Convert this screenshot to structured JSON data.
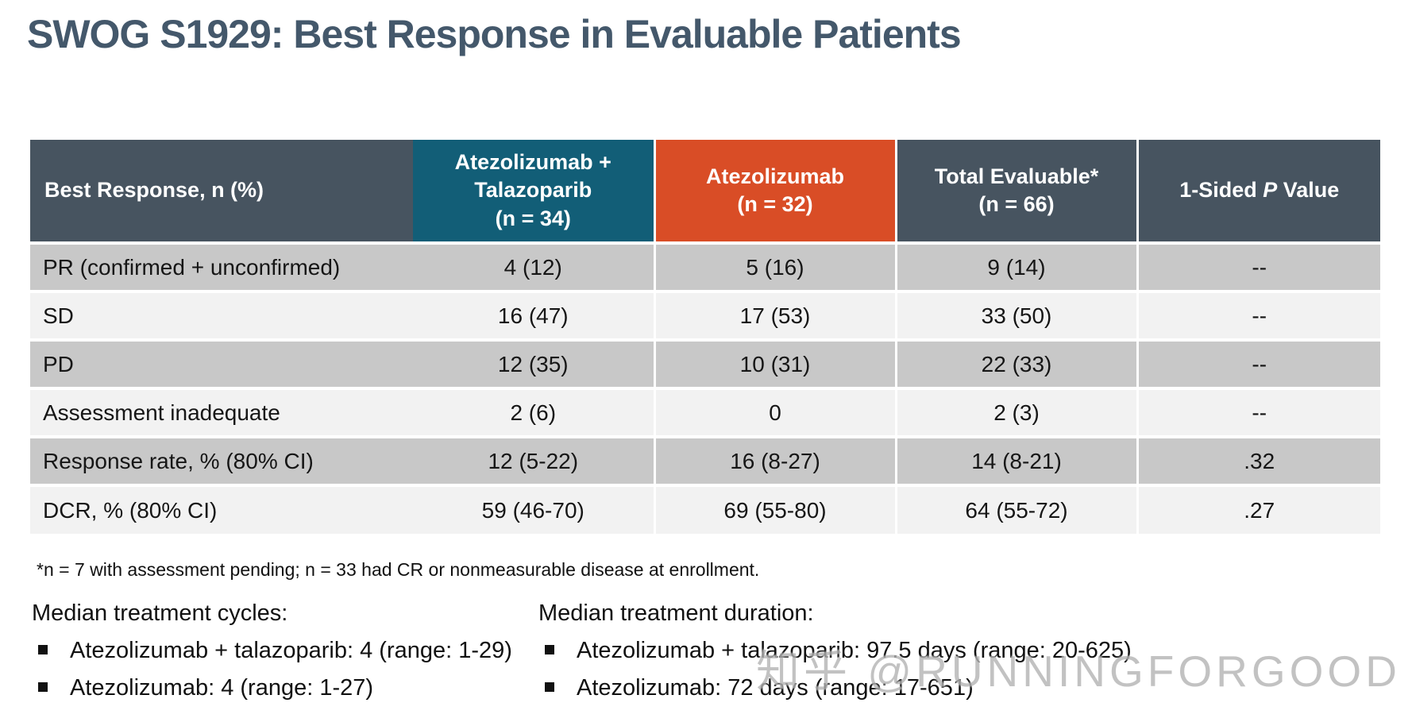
{
  "slide": {
    "title": "SWOG S1929: Best Response in Evaluable Patients",
    "watermark": "知乎 @RUNNINGFORGOOD"
  },
  "table": {
    "header": {
      "col0": "Best Response, n (%)",
      "col1": "Atezolizumab +\nTalazoparib\n(n = 34)",
      "col2": "Atezolizumab\n(n = 32)",
      "col3": "Total Evaluable*\n(n = 66)",
      "col4_pre": "1-Sided ",
      "col4_italic": "P",
      "col4_post": " Value"
    },
    "rows": [
      {
        "label": "PR (confirmed + unconfirmed)",
        "values": [
          "4 (12)",
          "5 (16)",
          "9 (14)",
          "--"
        ]
      },
      {
        "label": "SD",
        "values": [
          "16 (47)",
          "17 (53)",
          "33 (50)",
          "--"
        ]
      },
      {
        "label": "PD",
        "values": [
          "12 (35)",
          "10 (31)",
          "22 (33)",
          "--"
        ]
      },
      {
        "label": "Assessment inadequate",
        "values": [
          "2 (6)",
          "0",
          "2 (3)",
          "--"
        ]
      },
      {
        "label": "Response rate, % (80% CI)",
        "values": [
          "12 (5-22)",
          "16 (8-27)",
          "14 (8-21)",
          ".32"
        ]
      },
      {
        "label": "DCR, % (80% CI)",
        "values": [
          "59 (46-70)",
          "69 (55-80)",
          "64 (55-72)",
          ".27"
        ]
      }
    ]
  },
  "footnote": "*n = 7 with assessment pending; n = 33 had CR or nonmeasurable disease at enrollment.",
  "treatment_cycles": {
    "heading": "Median treatment cycles:",
    "bullets": [
      "Atezolizumab + talazoparib: 4 (range: 1-29)",
      "Atezolizumab: 4 (range: 1-27)"
    ]
  },
  "treatment_duration": {
    "heading": "Median treatment duration:",
    "bullets": [
      "Atezolizumab + talazoparib: 97.5 days (range: 20-625)",
      "Atezolizumab: 72 days (range: 17-651)"
    ]
  },
  "colors": {
    "title": "#44586B",
    "header_dark": "#475460",
    "header_teal": "#125E77",
    "header_orange": "#D94D26",
    "row_gray": "#C8C8C8",
    "row_light": "#F2F2F2",
    "watermark": "#B3B3B3"
  }
}
